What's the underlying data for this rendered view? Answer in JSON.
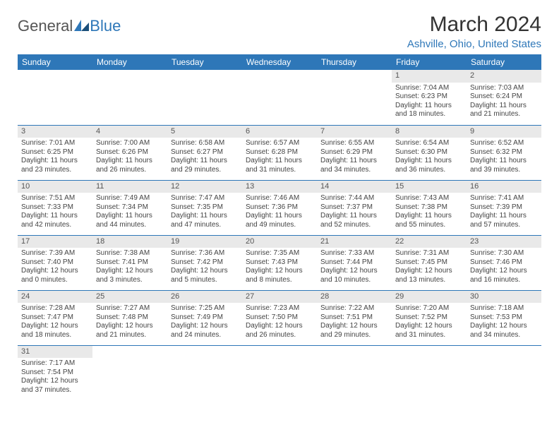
{
  "logo": {
    "general": "General",
    "blue": "Blue"
  },
  "title": "March 2024",
  "location": "Ashville, Ohio, United States",
  "weekday_header_bg": "#2e77b8",
  "weekdays": [
    "Sunday",
    "Monday",
    "Tuesday",
    "Wednesday",
    "Thursday",
    "Friday",
    "Saturday"
  ],
  "first_weekday_index": 5,
  "days": [
    {
      "n": "1",
      "sunrise": "Sunrise: 7:04 AM",
      "sunset": "Sunset: 6:23 PM",
      "daylight": "Daylight: 11 hours and 18 minutes."
    },
    {
      "n": "2",
      "sunrise": "Sunrise: 7:03 AM",
      "sunset": "Sunset: 6:24 PM",
      "daylight": "Daylight: 11 hours and 21 minutes."
    },
    {
      "n": "3",
      "sunrise": "Sunrise: 7:01 AM",
      "sunset": "Sunset: 6:25 PM",
      "daylight": "Daylight: 11 hours and 23 minutes."
    },
    {
      "n": "4",
      "sunrise": "Sunrise: 7:00 AM",
      "sunset": "Sunset: 6:26 PM",
      "daylight": "Daylight: 11 hours and 26 minutes."
    },
    {
      "n": "5",
      "sunrise": "Sunrise: 6:58 AM",
      "sunset": "Sunset: 6:27 PM",
      "daylight": "Daylight: 11 hours and 29 minutes."
    },
    {
      "n": "6",
      "sunrise": "Sunrise: 6:57 AM",
      "sunset": "Sunset: 6:28 PM",
      "daylight": "Daylight: 11 hours and 31 minutes."
    },
    {
      "n": "7",
      "sunrise": "Sunrise: 6:55 AM",
      "sunset": "Sunset: 6:29 PM",
      "daylight": "Daylight: 11 hours and 34 minutes."
    },
    {
      "n": "8",
      "sunrise": "Sunrise: 6:54 AM",
      "sunset": "Sunset: 6:30 PM",
      "daylight": "Daylight: 11 hours and 36 minutes."
    },
    {
      "n": "9",
      "sunrise": "Sunrise: 6:52 AM",
      "sunset": "Sunset: 6:32 PM",
      "daylight": "Daylight: 11 hours and 39 minutes."
    },
    {
      "n": "10",
      "sunrise": "Sunrise: 7:51 AM",
      "sunset": "Sunset: 7:33 PM",
      "daylight": "Daylight: 11 hours and 42 minutes."
    },
    {
      "n": "11",
      "sunrise": "Sunrise: 7:49 AM",
      "sunset": "Sunset: 7:34 PM",
      "daylight": "Daylight: 11 hours and 44 minutes."
    },
    {
      "n": "12",
      "sunrise": "Sunrise: 7:47 AM",
      "sunset": "Sunset: 7:35 PM",
      "daylight": "Daylight: 11 hours and 47 minutes."
    },
    {
      "n": "13",
      "sunrise": "Sunrise: 7:46 AM",
      "sunset": "Sunset: 7:36 PM",
      "daylight": "Daylight: 11 hours and 49 minutes."
    },
    {
      "n": "14",
      "sunrise": "Sunrise: 7:44 AM",
      "sunset": "Sunset: 7:37 PM",
      "daylight": "Daylight: 11 hours and 52 minutes."
    },
    {
      "n": "15",
      "sunrise": "Sunrise: 7:43 AM",
      "sunset": "Sunset: 7:38 PM",
      "daylight": "Daylight: 11 hours and 55 minutes."
    },
    {
      "n": "16",
      "sunrise": "Sunrise: 7:41 AM",
      "sunset": "Sunset: 7:39 PM",
      "daylight": "Daylight: 11 hours and 57 minutes."
    },
    {
      "n": "17",
      "sunrise": "Sunrise: 7:39 AM",
      "sunset": "Sunset: 7:40 PM",
      "daylight": "Daylight: 12 hours and 0 minutes."
    },
    {
      "n": "18",
      "sunrise": "Sunrise: 7:38 AM",
      "sunset": "Sunset: 7:41 PM",
      "daylight": "Daylight: 12 hours and 3 minutes."
    },
    {
      "n": "19",
      "sunrise": "Sunrise: 7:36 AM",
      "sunset": "Sunset: 7:42 PM",
      "daylight": "Daylight: 12 hours and 5 minutes."
    },
    {
      "n": "20",
      "sunrise": "Sunrise: 7:35 AM",
      "sunset": "Sunset: 7:43 PM",
      "daylight": "Daylight: 12 hours and 8 minutes."
    },
    {
      "n": "21",
      "sunrise": "Sunrise: 7:33 AM",
      "sunset": "Sunset: 7:44 PM",
      "daylight": "Daylight: 12 hours and 10 minutes."
    },
    {
      "n": "22",
      "sunrise": "Sunrise: 7:31 AM",
      "sunset": "Sunset: 7:45 PM",
      "daylight": "Daylight: 12 hours and 13 minutes."
    },
    {
      "n": "23",
      "sunrise": "Sunrise: 7:30 AM",
      "sunset": "Sunset: 7:46 PM",
      "daylight": "Daylight: 12 hours and 16 minutes."
    },
    {
      "n": "24",
      "sunrise": "Sunrise: 7:28 AM",
      "sunset": "Sunset: 7:47 PM",
      "daylight": "Daylight: 12 hours and 18 minutes."
    },
    {
      "n": "25",
      "sunrise": "Sunrise: 7:27 AM",
      "sunset": "Sunset: 7:48 PM",
      "daylight": "Daylight: 12 hours and 21 minutes."
    },
    {
      "n": "26",
      "sunrise": "Sunrise: 7:25 AM",
      "sunset": "Sunset: 7:49 PM",
      "daylight": "Daylight: 12 hours and 24 minutes."
    },
    {
      "n": "27",
      "sunrise": "Sunrise: 7:23 AM",
      "sunset": "Sunset: 7:50 PM",
      "daylight": "Daylight: 12 hours and 26 minutes."
    },
    {
      "n": "28",
      "sunrise": "Sunrise: 7:22 AM",
      "sunset": "Sunset: 7:51 PM",
      "daylight": "Daylight: 12 hours and 29 minutes."
    },
    {
      "n": "29",
      "sunrise": "Sunrise: 7:20 AM",
      "sunset": "Sunset: 7:52 PM",
      "daylight": "Daylight: 12 hours and 31 minutes."
    },
    {
      "n": "30",
      "sunrise": "Sunrise: 7:18 AM",
      "sunset": "Sunset: 7:53 PM",
      "daylight": "Daylight: 12 hours and 34 minutes."
    },
    {
      "n": "31",
      "sunrise": "Sunrise: 7:17 AM",
      "sunset": "Sunset: 7:54 PM",
      "daylight": "Daylight: 12 hours and 37 minutes."
    }
  ]
}
